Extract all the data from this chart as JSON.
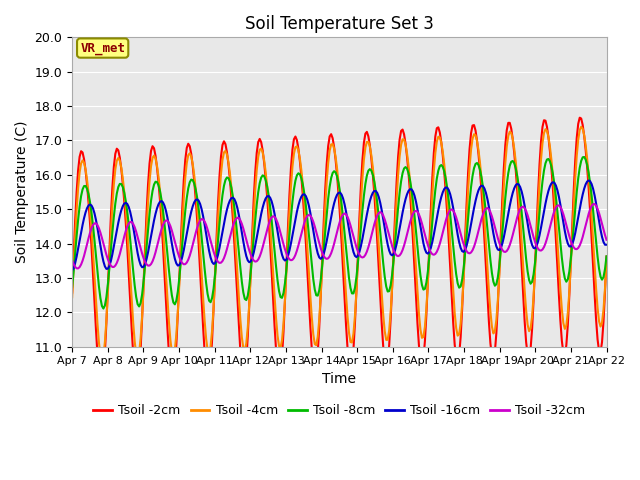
{
  "title": "Soil Temperature Set 3",
  "xlabel": "Time",
  "ylabel": "Soil Temperature (C)",
  "ylim": [
    11.0,
    20.0
  ],
  "yticks": [
    11.0,
    12.0,
    13.0,
    14.0,
    15.0,
    16.0,
    17.0,
    18.0,
    19.0,
    20.0
  ],
  "xtick_labels": [
    "Apr 7",
    "Apr 8",
    "Apr 9",
    "Apr 10",
    "Apr 11",
    "Apr 12",
    "Apr 13",
    "Apr 14",
    "Apr 15",
    "Apr 16",
    "Apr 17",
    "Apr 18",
    "Apr 19",
    "Apr 20",
    "Apr 21",
    "Apr 22"
  ],
  "annotation_text": "VR_met",
  "annotation_box_color": "#FFFF80",
  "annotation_text_color": "#8B0000",
  "annotation_edge_color": "#8B8B00",
  "bg_color": "#E8E8E8",
  "fig_width": 6.4,
  "fig_height": 4.8,
  "dpi": 100,
  "series_colors": [
    "#FF0000",
    "#FF8C00",
    "#00BB00",
    "#0000CC",
    "#CC00CC"
  ],
  "series_labels": [
    "Tsoil -2cm",
    "Tsoil -4cm",
    "Tsoil -8cm",
    "Tsoil -16cm",
    "Tsoil -32cm"
  ],
  "linewidth": 1.5,
  "n_points": 360
}
